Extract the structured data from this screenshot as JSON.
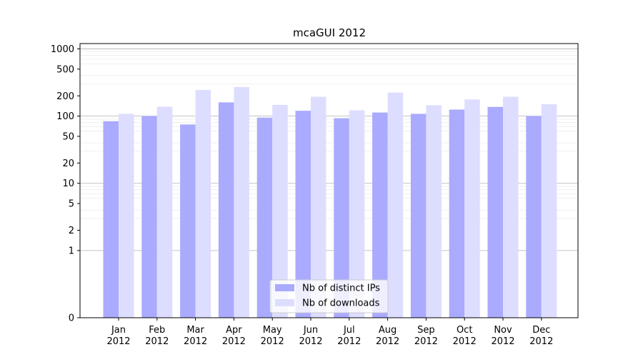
{
  "chart_data": {
    "type": "bar",
    "title": "mcaGUI 2012",
    "xlabel": "",
    "ylabel": "",
    "categories": [
      "Jan\n2012",
      "Feb\n2012",
      "Mar\n2012",
      "Apr\n2012",
      "May\n2012",
      "Jun\n2012",
      "Jul\n2012",
      "Aug\n2012",
      "Sep\n2012",
      "Oct\n2012",
      "Nov\n2012",
      "Dec\n2012"
    ],
    "series": [
      {
        "name": "Nb of distinct IPs",
        "color": "#aaaaff",
        "values": [
          84,
          100,
          75,
          160,
          95,
          120,
          93,
          113,
          108,
          125,
          137,
          100
        ]
      },
      {
        "name": "Nb of downloads",
        "color": "#ddddff",
        "values": [
          108,
          138,
          245,
          270,
          147,
          194,
          122,
          224,
          145,
          177,
          194,
          150
        ]
      }
    ],
    "yscale": "symlog",
    "ylim": [
      0,
      1200
    ],
    "yticks": [
      0,
      1,
      2,
      5,
      10,
      20,
      50,
      100,
      200,
      500,
      1000
    ],
    "grid": true,
    "legend": "bottom-center"
  }
}
